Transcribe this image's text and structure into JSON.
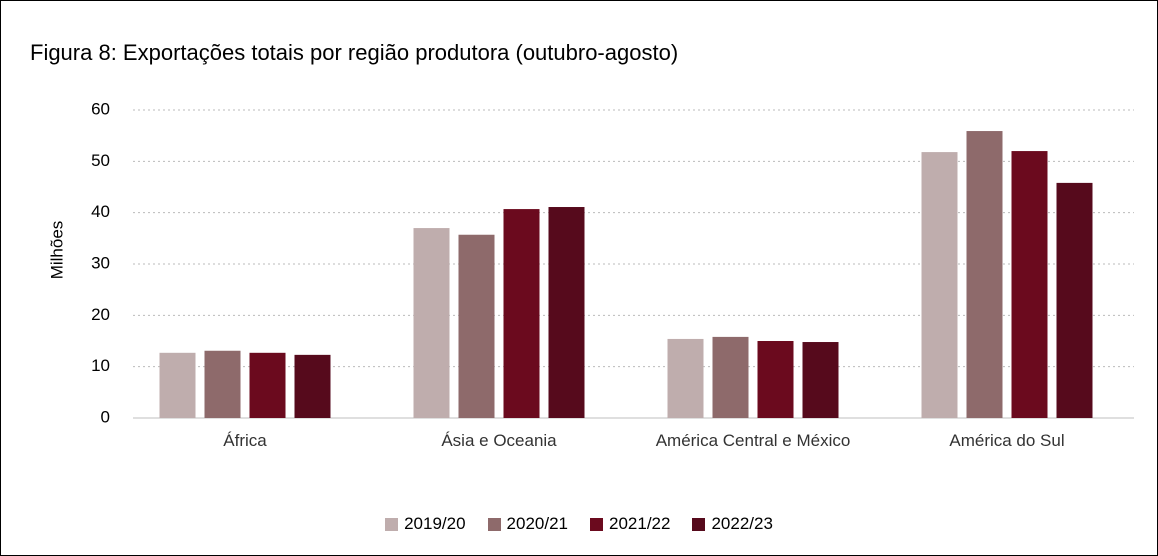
{
  "chart_data": {
    "type": "bar",
    "title": "Figura 8: Exportações totais por região produtora (outubro-agosto)",
    "y_label": "Milhões",
    "categories": [
      "África",
      "Ásia e Oceania",
      "América Central e México",
      "América do Sul"
    ],
    "series": [
      {
        "name": "2019/20",
        "color": "#bfadad",
        "values": [
          12.7,
          37.0,
          15.4,
          51.8
        ]
      },
      {
        "name": "2020/21",
        "color": "#8e6a6b",
        "values": [
          13.1,
          35.7,
          15.8,
          55.9
        ]
      },
      {
        "name": "2021/22",
        "color": "#6b0a1e",
        "values": [
          12.7,
          40.7,
          15.0,
          52.0
        ]
      },
      {
        "name": "2022/23",
        "color": "#560a1c",
        "values": [
          12.3,
          41.1,
          14.8,
          45.8
        ]
      }
    ],
    "ylim": [
      0,
      60
    ],
    "yticks": [
      0,
      10,
      20,
      30,
      40,
      50,
      60
    ],
    "grid": true,
    "legend": "bottom"
  }
}
